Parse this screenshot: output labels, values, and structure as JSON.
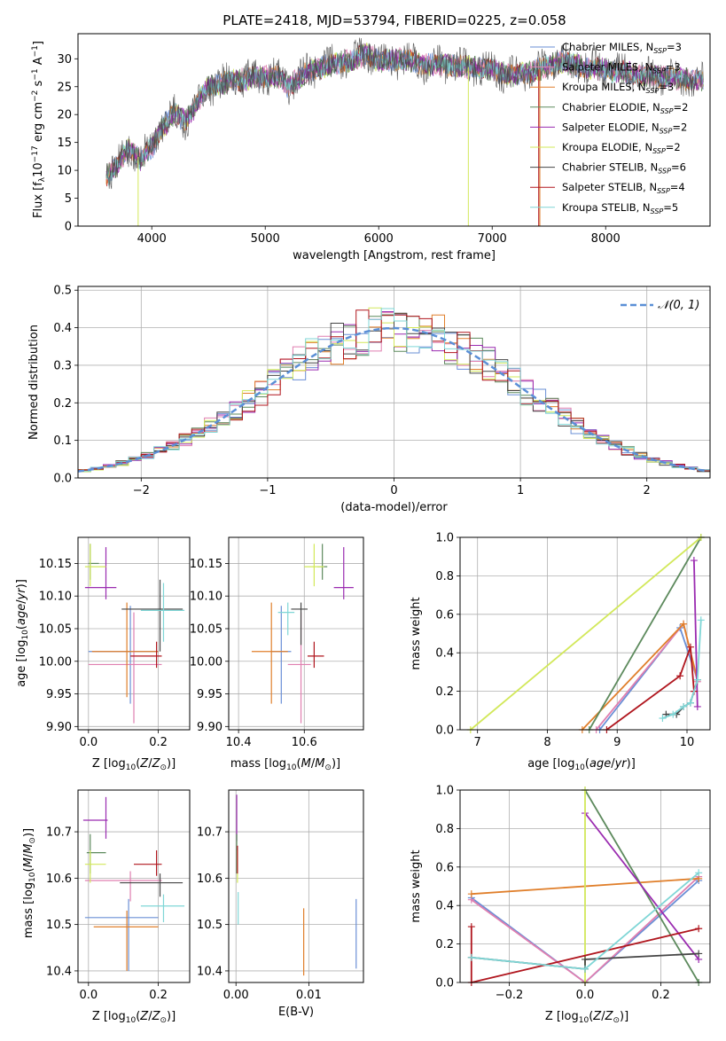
{
  "figure": {
    "title": "PLATE=2418, MJD=53794, FIBERID=0225, z=0.058"
  },
  "colors": {
    "Chabrier MILES": "#6a8fd6",
    "Salpeter MILES": "#e07fb0",
    "Kroupa MILES": "#e07f2b",
    "Chabrier ELODIE": "#5d8a5d",
    "Salpeter ELODIE": "#9a2bb0",
    "Kroupa ELODIE": "#d2e85a",
    "Chabrier STELIB": "#454545",
    "Salpeter STELIB": "#b0161e",
    "Kroupa STELIB": "#7fd6d6",
    "normal": "#5b8fd6"
  },
  "chart_data": [
    {
      "id": "spectrum",
      "type": "line",
      "xlabel": "wavelength [Angstrom, rest frame]",
      "ylabel": "Flux [f_λ 10^-17 erg cm^-2 s^-1 A^-1]",
      "xlim": [
        3350,
        8920
      ],
      "ylim": [
        0,
        34.5
      ],
      "xticks": [
        4000,
        5000,
        6000,
        7000,
        8000
      ],
      "yticks": [
        0,
        5,
        10,
        15,
        20,
        25,
        30
      ],
      "legend_position": "top-right",
      "legend": [
        {
          "name": "Chabrier MILES",
          "label": "Chabrier MILES, N",
          "n": "3"
        },
        {
          "name": "Salpeter MILES",
          "label": "Salpeter MILES, N",
          "n": "3"
        },
        {
          "name": "Kroupa MILES",
          "label": "Kroupa MILES, N",
          "n": "3"
        },
        {
          "name": "Chabrier ELODIE",
          "label": "Chabrier ELODIE, N",
          "n": "2"
        },
        {
          "name": "Salpeter ELODIE",
          "label": "Salpeter ELODIE, N",
          "n": "2"
        },
        {
          "name": "Kroupa ELODIE",
          "label": "Kroupa ELODIE, N",
          "n": "2"
        },
        {
          "name": "Chabrier STELIB",
          "label": "Chabrier STELIB, N",
          "n": "6"
        },
        {
          "name": "Salpeter STELIB",
          "label": "Salpeter STELIB, N",
          "n": "4"
        },
        {
          "name": "Kroupa STELIB",
          "label": "Kroupa STELIB, N",
          "n": "5"
        }
      ],
      "legend_subscript": "SSP",
      "continuum": [
        [
          3600,
          9
        ],
        [
          3700,
          11
        ],
        [
          3800,
          14
        ],
        [
          3900,
          12
        ],
        [
          4000,
          14
        ],
        [
          4100,
          18
        ],
        [
          4200,
          20
        ],
        [
          4300,
          19
        ],
        [
          4400,
          22
        ],
        [
          4500,
          25
        ],
        [
          4700,
          26
        ],
        [
          4900,
          26.5
        ],
        [
          5100,
          27
        ],
        [
          5200,
          25
        ],
        [
          5400,
          28
        ],
        [
          5600,
          29
        ],
        [
          5800,
          30
        ],
        [
          5900,
          31
        ],
        [
          6000,
          29.5
        ],
        [
          6200,
          30
        ],
        [
          6400,
          29
        ],
        [
          6600,
          29
        ],
        [
          6800,
          28.5
        ],
        [
          7000,
          28
        ],
        [
          7200,
          27
        ],
        [
          7400,
          28
        ],
        [
          7600,
          29.5
        ],
        [
          7800,
          28.5
        ],
        [
          8000,
          28
        ],
        [
          8200,
          27.5
        ],
        [
          8400,
          27
        ],
        [
          8600,
          26.5
        ],
        [
          8850,
          26
        ]
      ]
    },
    {
      "id": "residuals",
      "type": "line",
      "xlabel": "(data-model)/error",
      "ylabel": "Normed distribution",
      "xlim": [
        -2.5,
        2.5
      ],
      "ylim": [
        0,
        0.51
      ],
      "xticks": [
        -2,
        -1,
        0,
        1,
        2
      ],
      "yticks": [
        0.0,
        0.1,
        0.2,
        0.3,
        0.4,
        0.5
      ],
      "legend_position": "top-right",
      "legend_label": "𝒩(0, 1)",
      "normal_mean": 0,
      "normal_sigma": 1,
      "bin_width": 0.1
    },
    {
      "id": "age-vs-Z",
      "type": "scatter",
      "xlabel": "Z [log10(Z/Z⊙)]",
      "ylabel": "age [log10(age/yr)]",
      "xlim": [
        -0.03,
        0.29
      ],
      "ylim": [
        9.895,
        10.19
      ],
      "xticks": [
        0.0,
        0.2
      ],
      "yticks": [
        9.9,
        9.95,
        10.0,
        10.05,
        10.1,
        10.15
      ],
      "points": [
        {
          "name": "Chabrier MILES",
          "x": 0.12,
          "y": 10.015,
          "xlo": 0.0,
          "xhi": 0.2,
          "ylo": 9.935,
          "yhi": 10.085
        },
        {
          "name": "Salpeter MILES",
          "x": 0.13,
          "y": 9.995,
          "xlo": 0.0,
          "xhi": 0.21,
          "ylo": 9.905,
          "yhi": 10.075
        },
        {
          "name": "Kroupa MILES",
          "x": 0.11,
          "y": 10.015,
          "xlo": 0.01,
          "xhi": 0.2,
          "ylo": 9.945,
          "yhi": 10.09
        },
        {
          "name": "Chabrier ELODIE",
          "x": 0.005,
          "y": 10.15,
          "xlo": 0.0,
          "xhi": 0.03,
          "ylo": 10.125,
          "yhi": 10.18
        },
        {
          "name": "Salpeter ELODIE",
          "x": 0.05,
          "y": 10.113,
          "xlo": -0.01,
          "xhi": 0.08,
          "ylo": 10.095,
          "yhi": 10.175
        },
        {
          "name": "Kroupa ELODIE",
          "x": 0.005,
          "y": 10.145,
          "xlo": -0.01,
          "xhi": 0.05,
          "ylo": 10.115,
          "yhi": 10.18
        },
        {
          "name": "Chabrier STELIB",
          "x": 0.205,
          "y": 10.08,
          "xlo": 0.095,
          "xhi": 0.27,
          "ylo": 10.015,
          "yhi": 10.125
        },
        {
          "name": "Salpeter STELIB",
          "x": 0.195,
          "y": 10.008,
          "xlo": 0.12,
          "xhi": 0.21,
          "ylo": 9.99,
          "yhi": 10.03
        },
        {
          "name": "Kroupa STELIB",
          "x": 0.215,
          "y": 10.078,
          "xlo": 0.15,
          "xhi": 0.275,
          "ylo": 10.03,
          "yhi": 10.12
        }
      ]
    },
    {
      "id": "age-vs-mass",
      "type": "scatter",
      "xlabel": "mass [log10(M/M⊙)]",
      "ylabel": "",
      "xlim": [
        10.37,
        10.78
      ],
      "ylim": [
        9.895,
        10.19
      ],
      "xticks": [
        10.4,
        10.6
      ],
      "yticks": [
        9.9,
        9.95,
        10.0,
        10.05,
        10.1,
        10.15
      ],
      "points": [
        {
          "name": "Chabrier MILES",
          "x": 10.53,
          "y": 10.015,
          "xlo": 10.5,
          "xhi": 10.56,
          "ylo": 9.935,
          "yhi": 10.085
        },
        {
          "name": "Salpeter MILES",
          "x": 10.59,
          "y": 9.995,
          "xlo": 10.55,
          "xhi": 10.62,
          "ylo": 9.905,
          "yhi": 10.075
        },
        {
          "name": "Kroupa MILES",
          "x": 10.5,
          "y": 10.015,
          "xlo": 10.44,
          "xhi": 10.55,
          "ylo": 9.935,
          "yhi": 10.09
        },
        {
          "name": "Chabrier ELODIE",
          "x": 10.655,
          "y": 10.145,
          "xlo": 10.64,
          "xhi": 10.67,
          "ylo": 10.125,
          "yhi": 10.18
        },
        {
          "name": "Salpeter ELODIE",
          "x": 10.72,
          "y": 10.113,
          "xlo": 10.69,
          "xhi": 10.75,
          "ylo": 10.095,
          "yhi": 10.175
        },
        {
          "name": "Kroupa ELODIE",
          "x": 10.63,
          "y": 10.145,
          "xlo": 10.6,
          "xhi": 10.66,
          "ylo": 10.115,
          "yhi": 10.18
        },
        {
          "name": "Chabrier STELIB",
          "x": 10.59,
          "y": 10.08,
          "xlo": 10.56,
          "xhi": 10.61,
          "ylo": 10.025,
          "yhi": 10.09
        },
        {
          "name": "Salpeter STELIB",
          "x": 10.63,
          "y": 10.008,
          "xlo": 10.61,
          "xhi": 10.66,
          "ylo": 9.99,
          "yhi": 10.03
        },
        {
          "name": "Kroupa STELIB",
          "x": 10.55,
          "y": 10.075,
          "xlo": 10.52,
          "xhi": 10.57,
          "ylo": 10.04,
          "yhi": 10.09
        }
      ]
    },
    {
      "id": "weight-vs-age",
      "type": "line",
      "xlabel": "age [log10(age/yr)]",
      "ylabel": "mass weight",
      "xlim": [
        6.75,
        10.33
      ],
      "ylim": [
        0,
        1.0
      ],
      "xticks": [
        7,
        8,
        9,
        10
      ],
      "yticks": [
        0.0,
        0.2,
        0.4,
        0.6,
        0.8,
        1.0
      ],
      "series": [
        {
          "name": "Chabrier MILES",
          "x": [
            8.75,
            9.9,
            10.15
          ],
          "y": [
            0.0,
            0.53,
            0.26
          ]
        },
        {
          "name": "Salpeter MILES",
          "x": [
            8.7,
            9.95,
            10.15
          ],
          "y": [
            0.0,
            0.55,
            0.25
          ]
        },
        {
          "name": "Kroupa MILES",
          "x": [
            8.5,
            9.95,
            10.15
          ],
          "y": [
            0.0,
            0.55,
            0.26
          ]
        },
        {
          "name": "Chabrier ELODIE",
          "x": [
            8.6,
            10.2
          ],
          "y": [
            0.0,
            1.0
          ]
        },
        {
          "name": "Salpeter ELODIE",
          "x": [
            10.1,
            10.15
          ],
          "y": [
            0.88,
            0.12
          ]
        },
        {
          "name": "Kroupa ELODIE",
          "x": [
            6.9,
            10.2
          ],
          "y": [
            0.0,
            1.0
          ]
        },
        {
          "name": "Chabrier STELIB",
          "x": [
            9.7,
            9.85,
            9.95,
            10.05,
            10.15
          ],
          "y": [
            0.08,
            0.08,
            0.12,
            0.14,
            0.26
          ]
        },
        {
          "name": "Salpeter STELIB",
          "x": [
            8.85,
            9.9,
            10.05,
            10.1
          ],
          "y": [
            0.0,
            0.28,
            0.43,
            0.2
          ]
        },
        {
          "name": "Kroupa STELIB",
          "x": [
            9.65,
            9.8,
            9.95,
            10.05,
            10.15,
            10.2
          ],
          "y": [
            0.06,
            0.08,
            0.12,
            0.14,
            0.26,
            0.57
          ]
        }
      ]
    },
    {
      "id": "mass-vs-Z",
      "type": "scatter",
      "xlabel": "Z [log10(Z/Z⊙)]",
      "ylabel": "mass [log10(M/M⊙)]",
      "xlim": [
        -0.03,
        0.29
      ],
      "ylim": [
        10.375,
        10.79
      ],
      "xticks": [
        0.0,
        0.2
      ],
      "yticks": [
        10.4,
        10.5,
        10.6,
        10.7
      ],
      "points": [
        {
          "name": "Chabrier MILES",
          "x": 0.115,
          "y": 10.515,
          "xlo": -0.01,
          "xhi": 0.2,
          "ylo": 10.4,
          "yhi": 10.555
        },
        {
          "name": "Salpeter MILES",
          "x": 0.12,
          "y": 10.595,
          "xlo": -0.01,
          "xhi": 0.21,
          "ylo": 10.55,
          "yhi": 10.615
        },
        {
          "name": "Kroupa MILES",
          "x": 0.11,
          "y": 10.495,
          "xlo": 0.015,
          "xhi": 0.2,
          "ylo": 10.4,
          "yhi": 10.53
        },
        {
          "name": "Chabrier ELODIE",
          "x": 0.005,
          "y": 10.655,
          "xlo": -0.005,
          "xhi": 0.05,
          "ylo": 10.61,
          "yhi": 10.695
        },
        {
          "name": "Salpeter ELODIE",
          "x": 0.05,
          "y": 10.725,
          "xlo": -0.015,
          "xhi": 0.055,
          "ylo": 10.685,
          "yhi": 10.775
        },
        {
          "name": "Kroupa ELODIE",
          "x": 0.005,
          "y": 10.63,
          "xlo": -0.01,
          "xhi": 0.05,
          "ylo": 10.59,
          "yhi": 10.66
        },
        {
          "name": "Chabrier STELIB",
          "x": 0.205,
          "y": 10.59,
          "xlo": 0.09,
          "xhi": 0.27,
          "ylo": 10.56,
          "yhi": 10.61
        },
        {
          "name": "Salpeter STELIB",
          "x": 0.195,
          "y": 10.63,
          "xlo": 0.13,
          "xhi": 0.21,
          "ylo": 10.605,
          "yhi": 10.66
        },
        {
          "name": "Kroupa STELIB",
          "x": 0.215,
          "y": 10.54,
          "xlo": 0.15,
          "xhi": 0.275,
          "ylo": 10.505,
          "yhi": 10.565
        }
      ]
    },
    {
      "id": "mass-vs-EBV",
      "type": "scatter",
      "xlabel": "E(B-V)",
      "ylabel": "",
      "xlim": [
        -0.001,
        0.0175
      ],
      "ylim": [
        10.375,
        10.79
      ],
      "xticks": [
        0.0,
        0.01
      ],
      "yticks": [
        10.4,
        10.5,
        10.6,
        10.7
      ],
      "points": [
        {
          "name": "Chabrier MILES",
          "x": 0.0165,
          "y": 10.48,
          "xlo": 0.0165,
          "xhi": 0.0165,
          "ylo": 10.405,
          "yhi": 10.555
        },
        {
          "name": "Kroupa MILES",
          "x": 0.0093,
          "y": 10.46,
          "xlo": 0.0093,
          "xhi": 0.0093,
          "ylo": 10.39,
          "yhi": 10.535
        },
        {
          "name": "Salpeter ELODIE",
          "x": 0.0001,
          "y": 10.73,
          "xlo": 0.0001,
          "xhi": 0.0001,
          "ylo": 10.68,
          "yhi": 10.78
        },
        {
          "name": "Chabrier ELODIE",
          "x": 0.0001,
          "y": 10.65,
          "xlo": 0.0001,
          "xhi": 0.0001,
          "ylo": 10.61,
          "yhi": 10.695
        },
        {
          "name": "Kroupa ELODIE",
          "x": 0.0002,
          "y": 10.62,
          "xlo": 0.0002,
          "xhi": 0.0002,
          "ylo": 10.59,
          "yhi": 10.66
        },
        {
          "name": "Salpeter STELIB",
          "x": 0.0002,
          "y": 10.64,
          "xlo": 0.0002,
          "xhi": 0.0002,
          "ylo": 10.61,
          "yhi": 10.67
        },
        {
          "name": "Kroupa STELIB",
          "x": 0.0003,
          "y": 10.54,
          "xlo": 0.0003,
          "xhi": 0.0003,
          "ylo": 10.5,
          "yhi": 10.57
        }
      ]
    },
    {
      "id": "weight-vs-Z",
      "type": "line",
      "xlabel": "Z [log10(Z/Z⊙)]",
      "ylabel": "mass weight",
      "xlim": [
        -0.33,
        0.33
      ],
      "ylim": [
        0,
        1.0
      ],
      "xticks": [
        -0.2,
        0.0,
        0.2
      ],
      "yticks": [
        0.0,
        0.2,
        0.4,
        0.6,
        0.8,
        1.0
      ],
      "series": [
        {
          "name": "Chabrier MILES",
          "x": [
            -0.3,
            0.0,
            0.3
          ],
          "y": [
            0.44,
            0.0,
            0.53
          ]
        },
        {
          "name": "Salpeter MILES",
          "x": [
            -0.3,
            0.0,
            0.3
          ],
          "y": [
            0.43,
            0.0,
            0.55
          ]
        },
        {
          "name": "Kroupa MILES",
          "x": [
            -0.3,
            0.3
          ],
          "y": [
            0.46,
            0.54
          ]
        },
        {
          "name": "Chabrier ELODIE",
          "x": [
            0.0,
            0.3
          ],
          "y": [
            1.0,
            0.0
          ]
        },
        {
          "name": "Salpeter ELODIE",
          "x": [
            0.0,
            0.3
          ],
          "y": [
            0.88,
            0.12
          ]
        },
        {
          "name": "Kroupa ELODIE",
          "x": [
            0.0,
            0.0
          ],
          "y": [
            0.0,
            1.0
          ]
        },
        {
          "name": "Chabrier STELIB",
          "x": [
            -0.3,
            0.0,
            0.0,
            0.3
          ],
          "y": [
            0.13,
            0.07,
            0.12,
            0.15
          ]
        },
        {
          "name": "Salpeter STELIB",
          "x": [
            -0.3,
            -0.3,
            0.3
          ],
          "y": [
            0.29,
            0.0,
            0.28
          ]
        },
        {
          "name": "Kroupa STELIB",
          "x": [
            -0.3,
            0.0,
            0.3
          ],
          "y": [
            0.13,
            0.07,
            0.57
          ]
        }
      ]
    }
  ]
}
